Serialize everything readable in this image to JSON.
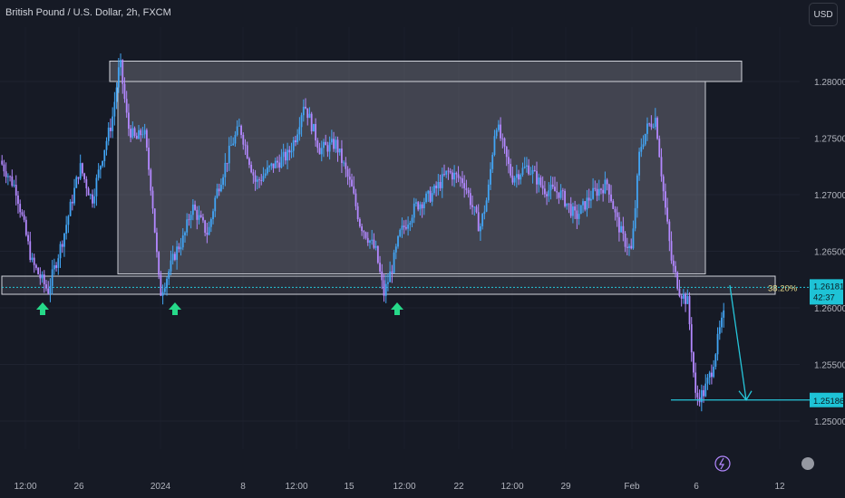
{
  "header": {
    "title": "British Pound / U.S. Dollar, 2h, FXCM",
    "currency_button": "USD"
  },
  "chart_data": {
    "type": "candlestick",
    "title": "British Pound / U.S. Dollar, 2h, FXCM",
    "ylim": [
      1.2475,
      1.2845
    ],
    "y_ticks": [
      "1.28000",
      "1.27500",
      "1.27000",
      "1.26500",
      "1.26000",
      "1.25500",
      "1.25000"
    ],
    "x_ticks": [
      "12:00",
      "26",
      "2024",
      "8",
      "12:00",
      "15",
      "12:00",
      "22",
      "12:00",
      "29",
      "Feb",
      "6",
      "12"
    ],
    "colors": {
      "background": "#161a25",
      "up": "#42a5f5",
      "down": "#b388ff",
      "annotation": "#26c6da",
      "arrow_up": "#26d989"
    },
    "price_series": [
      [
        0.0,
        1.273
      ],
      [
        0.02,
        1.2705
      ],
      [
        0.04,
        1.264
      ],
      [
        0.06,
        1.2615
      ],
      [
        0.08,
        1.2665
      ],
      [
        0.1,
        1.2725
      ],
      [
        0.115,
        1.2695
      ],
      [
        0.13,
        1.274
      ],
      [
        0.14,
        1.2765
      ],
      [
        0.15,
        1.2818
      ],
      [
        0.16,
        1.276
      ],
      [
        0.17,
        1.2748
      ],
      [
        0.18,
        1.2758
      ],
      [
        0.19,
        1.27
      ],
      [
        0.2,
        1.2612
      ],
      [
        0.21,
        1.263
      ],
      [
        0.22,
        1.265
      ],
      [
        0.23,
        1.2662
      ],
      [
        0.24,
        1.269
      ],
      [
        0.26,
        1.2665
      ],
      [
        0.27,
        1.27
      ],
      [
        0.29,
        1.2745
      ],
      [
        0.3,
        1.276
      ],
      [
        0.32,
        1.271
      ],
      [
        0.34,
        1.2725
      ],
      [
        0.36,
        1.2735
      ],
      [
        0.37,
        1.2752
      ],
      [
        0.38,
        1.2782
      ],
      [
        0.4,
        1.274
      ],
      [
        0.42,
        1.2745
      ],
      [
        0.44,
        1.2705
      ],
      [
        0.45,
        1.2675
      ],
      [
        0.47,
        1.265
      ],
      [
        0.48,
        1.2612
      ],
      [
        0.49,
        1.2635
      ],
      [
        0.5,
        1.2665
      ],
      [
        0.52,
        1.269
      ],
      [
        0.54,
        1.27
      ],
      [
        0.56,
        1.272
      ],
      [
        0.58,
        1.2712
      ],
      [
        0.6,
        1.267
      ],
      [
        0.61,
        1.27
      ],
      [
        0.62,
        1.2765
      ],
      [
        0.64,
        1.2715
      ],
      [
        0.66,
        1.2725
      ],
      [
        0.68,
        1.2705
      ],
      [
        0.7,
        1.2702
      ],
      [
        0.72,
        1.268
      ],
      [
        0.74,
        1.27
      ],
      [
        0.76,
        1.271
      ],
      [
        0.77,
        1.268
      ],
      [
        0.78,
        1.266
      ],
      [
        0.79,
        1.265
      ],
      [
        0.8,
        1.274
      ],
      [
        0.81,
        1.276
      ],
      [
        0.82,
        1.2768
      ],
      [
        0.83,
        1.27
      ],
      [
        0.84,
        1.264
      ],
      [
        0.85,
        1.2615
      ],
      [
        0.86,
        1.2605
      ],
      [
        0.87,
        1.252
      ],
      [
        0.88,
        1.2525
      ],
      [
        0.89,
        1.2545
      ],
      [
        0.9,
        1.258
      ],
      [
        0.91,
        1.2605
      ],
      [
        0.92,
        1.2618
      ]
    ],
    "annotations": {
      "range_box": {
        "top": 1.28,
        "bottom": 1.263
      },
      "resistance_zone": {
        "top": 1.2813,
        "bottom": 1.2805
      },
      "support_zone": {
        "top": 1.2628,
        "bottom": 1.2612
      },
      "fib_level_label": "38.20%",
      "current_price": "1.26181",
      "countdown": "42:37",
      "target_price": "1.25186",
      "target_level": 1.25186,
      "support_arrows": 3,
      "projection": "down arrow toward target"
    }
  }
}
